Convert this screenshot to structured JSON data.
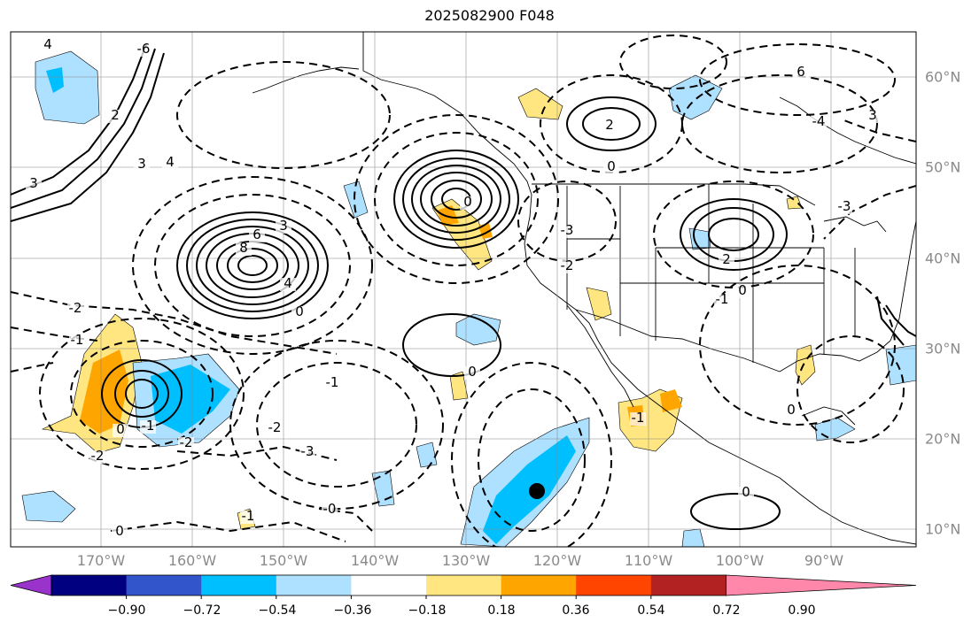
{
  "title": "2025082900 F048",
  "lon_labels": [
    "170°W",
    "160°W",
    "150°W",
    "140°W",
    "130°W",
    "120°W",
    "110°W",
    "100°W",
    "90°W"
  ],
  "lat_labels": [
    "60°N",
    "50°N",
    "40°N",
    "30°N",
    "20°N",
    "10°N"
  ],
  "colorbar": {
    "ticks": [
      "−0.90",
      "−0.72",
      "−0.54",
      "−0.36",
      "−0.18",
      "0.18",
      "0.36",
      "0.54",
      "0.72",
      "0.90"
    ],
    "colors": [
      "#9933cc",
      "#000080",
      "#3355cc",
      "#00bfff",
      "#aee0ff",
      "#ffffff",
      "#ffe680",
      "#ffa500",
      "#ff4500",
      "#b22222",
      "#ff88aa"
    ]
  },
  "contour_labels": [
    {
      "text": "4"
    },
    {
      "text": "2"
    },
    {
      "text": "3"
    },
    {
      "text": "3"
    },
    {
      "text": "4"
    },
    {
      "text": "6"
    },
    {
      "text": "8"
    },
    {
      "text": "3"
    },
    {
      "text": "4"
    },
    {
      "text": "0"
    },
    {
      "text": "-2"
    },
    {
      "text": "-1"
    },
    {
      "text": "-3"
    },
    {
      "text": "0"
    },
    {
      "text": "-1"
    },
    {
      "text": "-2"
    },
    {
      "text": "-1"
    },
    {
      "text": "-2"
    },
    {
      "text": "6"
    },
    {
      "text": "3"
    },
    {
      "text": "2"
    },
    {
      "text": "0"
    },
    {
      "text": "-3"
    },
    {
      "text": "-2"
    },
    {
      "text": "2"
    },
    {
      "text": "0"
    },
    {
      "text": "-1"
    },
    {
      "text": "0"
    },
    {
      "text": "-1"
    },
    {
      "text": "0"
    },
    {
      "text": "-6"
    },
    {
      "text": "-4"
    },
    {
      "text": "-3"
    },
    {
      "text": "-2"
    },
    {
      "text": "0"
    },
    {
      "text": "0"
    },
    {
      "text": "-0"
    },
    {
      "text": "-1"
    },
    {
      "text": "0"
    }
  ],
  "marker": {
    "label": "storm-center"
  }
}
